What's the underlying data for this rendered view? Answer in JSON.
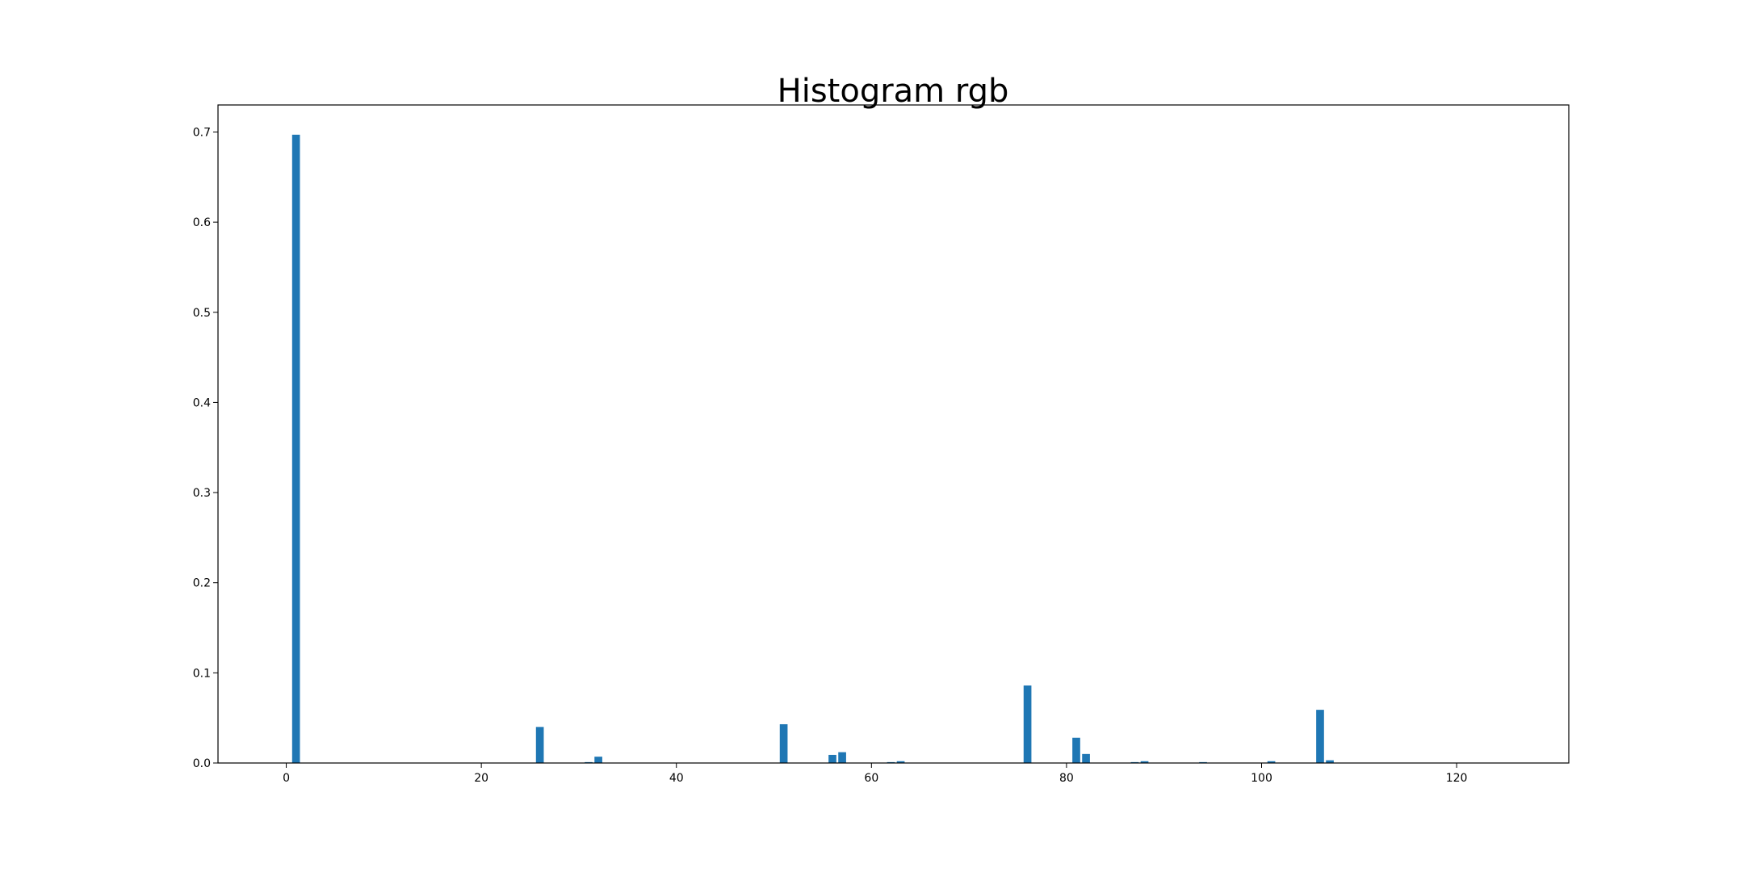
{
  "chart_data": {
    "type": "bar",
    "title": "Histogram rgb",
    "xlabel": "",
    "ylabel": "",
    "xlim": [
      -7,
      131.5
    ],
    "ylim": [
      0,
      0.73
    ],
    "xticks": [
      0,
      20,
      40,
      60,
      80,
      100,
      120
    ],
    "yticks": [
      0.0,
      0.1,
      0.2,
      0.3,
      0.4,
      0.5,
      0.6,
      0.7
    ],
    "bar_width": 0.8,
    "grid": false,
    "color": "#1f77b4",
    "x": [
      1,
      26,
      31,
      32,
      51,
      56,
      57,
      62,
      63,
      76,
      81,
      82,
      87,
      88,
      94,
      101,
      106,
      107
    ],
    "values": [
      0.697,
      0.04,
      0.001,
      0.007,
      0.043,
      0.009,
      0.012,
      0.001,
      0.002,
      0.086,
      0.028,
      0.01,
      0.001,
      0.002,
      0.001,
      0.002,
      0.059,
      0.003
    ]
  }
}
